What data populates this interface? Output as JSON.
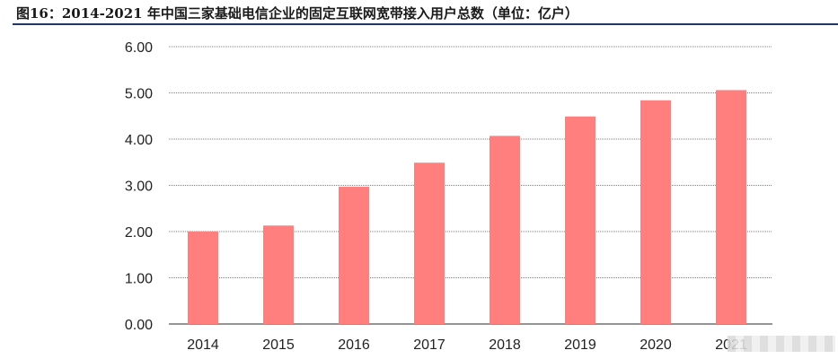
{
  "title": "图16：2014-2021 年中国三家基础电信企业的固定互联网宽带接入用户总数（单位：亿户）",
  "colors": {
    "bar": "#ff7f7f",
    "rule": "#1f3864",
    "grid": "#555555"
  },
  "chart_data": {
    "type": "bar",
    "title": "图16：2014-2021 年中国三家基础电信企业的固定互联网宽带接入用户总数（单位：亿户）",
    "categories": [
      "2014",
      "2015",
      "2016",
      "2017",
      "2018",
      "2019",
      "2020",
      "2021"
    ],
    "series": [
      {
        "values": [
          2.0,
          2.13,
          2.97,
          3.49,
          4.07,
          4.49,
          4.84,
          5.06
        ]
      }
    ],
    "y_ticks": [
      "0.00",
      "1.00",
      "2.00",
      "3.00",
      "4.00",
      "5.00",
      "6.00"
    ],
    "ylim": [
      0,
      6
    ],
    "grid": true,
    "legend": "none"
  }
}
